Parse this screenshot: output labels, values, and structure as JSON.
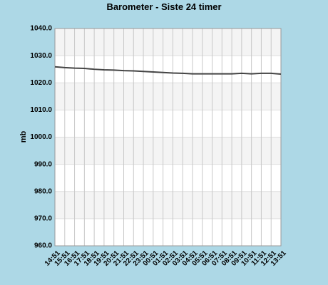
{
  "chart_data": {
    "type": "line",
    "title": "Barometer - Siste 24 timer",
    "y_label": "mb",
    "categories": [
      "14:51",
      "15:51",
      "16:51",
      "17:51",
      "18:51",
      "19:51",
      "20:51",
      "21:51",
      "22:51",
      "23:51",
      "00:51",
      "01:51",
      "02:51",
      "03:51",
      "04:51",
      "05:51",
      "06:51",
      "07:51",
      "08:51",
      "09:51",
      "10:51",
      "11:51",
      "12:51",
      "13:51"
    ],
    "series": [
      {
        "name": "Barometer",
        "color": "#444444",
        "values": [
          1025.9,
          1025.6,
          1025.4,
          1025.3,
          1025.0,
          1024.8,
          1024.7,
          1024.5,
          1024.4,
          1024.2,
          1024.0,
          1023.8,
          1023.6,
          1023.5,
          1023.3,
          1023.3,
          1023.3,
          1023.3,
          1023.3,
          1023.5,
          1023.3,
          1023.5,
          1023.5,
          1023.2
        ]
      }
    ],
    "ylim": [
      960,
      1040
    ],
    "yticks": [
      {
        "value": 960,
        "label": "960.0"
      },
      {
        "value": 970,
        "label": "970.0"
      },
      {
        "value": 980,
        "label": "980.0"
      },
      {
        "value": 990,
        "label": "990.0"
      },
      {
        "value": 1000,
        "label": "1000.0"
      },
      {
        "value": 1010,
        "label": "1010.0"
      },
      {
        "value": 1020,
        "label": "1020.0"
      },
      {
        "value": 1030,
        "label": "1030.0"
      },
      {
        "value": 1040,
        "label": "1040.0"
      }
    ],
    "grid": true
  }
}
